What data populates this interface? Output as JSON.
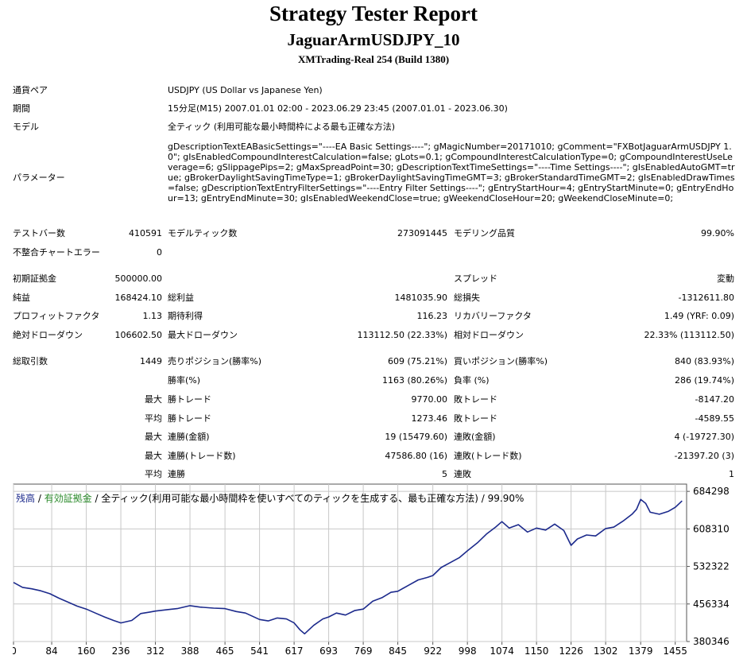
{
  "header": {
    "title": "Strategy Tester Report",
    "ea_name": "JaguarArmUSDJPY_10",
    "server": "XMTrading-Real 254 (Build 1380)"
  },
  "info": {
    "symbol_label": "通貨ペア",
    "symbol_value": "USDJPY (US Dollar vs Japanese Yen)",
    "period_label": "期間",
    "period_value": "15分足(M15) 2007.01.01 02:00 - 2023.06.29 23:45 (2007.01.01 - 2023.06.30)",
    "model_label": "モデル",
    "model_value": "全ティック (利用可能な最小時間枠による最も正確な方法)",
    "params_label": "パラメーター",
    "params_value": "gDescriptionTextEABasicSettings=\"----EA Basic Settings----\"; gMagicNumber=20171010; gComment=\"FXBotJaguarArmUSDJPY 1.0\"; gIsEnabledCompoundInterestCalculation=false; gLots=0.1; gCompoundInterestCalculationType=0; gCompoundInterestUseLeverage=6; gSlippagePips=2; gMaxSpreadPoint=30; gDescriptionTextTimeSettings=\"----Time Settings----\"; gIsEnabledAutoGMT=true; gBrokerDaylightSavingTimeType=1; gBrokerDaylightSavingTimeGMT=3; gBrokerStandardTimeGMT=2; gIsEnabledDrawTimes=false; gDescriptionTextEntryFilterSettings=\"----Entry Filter Settings----\"; gEntryStartHour=4; gEntryStartMinute=0; gEntryEndHour=13; gEntryEndMinute=30; gIsEnabledWeekendClose=true; gWeekendCloseHour=20; gWeekendCloseMinute=0;"
  },
  "stats": {
    "bars_label": "テストバー数",
    "bars_value": "410591",
    "ticks_label": "モデルティック数",
    "ticks_value": "273091445",
    "quality_label": "モデリング品質",
    "quality_value": "99.90%",
    "mismatch_label": "不整合チャートエラー",
    "mismatch_value": "0",
    "deposit_label": "初期証拠金",
    "deposit_value": "500000.00",
    "spread_label": "スプレッド",
    "spread_value": "変動",
    "net_label": "純益",
    "net_value": "168424.10",
    "gross_profit_label": "総利益",
    "gross_profit_value": "1481035.90",
    "gross_loss_label": "総損失",
    "gross_loss_value": "-1312611.80",
    "pf_label": "プロフィットファクタ",
    "pf_value": "1.13",
    "expected_label": "期待利得",
    "expected_value": "116.23",
    "recovery_label": "リカバリーファクタ",
    "recovery_value": "1.49 (YRF: 0.09)",
    "absdd_label": "絶対ドローダウン",
    "absdd_value": "106602.50",
    "maxdd_label": "最大ドローダウン",
    "maxdd_value": "113112.50 (22.33%)",
    "reldd_label": "相対ドローダウン",
    "reldd_value": "22.33% (113112.50)",
    "trades_label": "総取引数",
    "trades_value": "1449",
    "short_label": "売りポジション(勝率%)",
    "short_value": "609 (75.21%)",
    "long_label": "買いポジション(勝率%)",
    "long_value": "840 (83.93%)",
    "winrate_label": "勝率(%)",
    "winrate_value": "1163 (80.26%)",
    "lossrate_label": "負率 (%)",
    "lossrate_value": "286 (19.74%)",
    "max_label": "最大",
    "avg_label": "平均",
    "largest_win_label": "勝トレード",
    "largest_win_value": "9770.00",
    "largest_loss_label": "敗トレード",
    "largest_loss_value": "-8147.20",
    "avg_win_label": "勝トレード",
    "avg_win_value": "1273.46",
    "avg_loss_label": "敗トレード",
    "avg_loss_value": "-4589.55",
    "consec_win_label": "連勝(金額)",
    "consec_win_value": "19 (15479.60)",
    "consec_loss_label": "連敗(金額)",
    "consec_loss_value": "4 (-19727.30)",
    "consec_profit_label": "連勝(トレード数)",
    "consec_profit_value": "47586.80 (16)",
    "consec_lossamt_label": "連敗(トレード数)",
    "consec_lossamt_value": "-21397.20 (3)",
    "avg_consec_win_label": "連勝",
    "avg_consec_win_value": "5",
    "avg_consec_loss_label": "連敗",
    "avg_consec_loss_value": "1"
  },
  "legend": {
    "balance": "残高",
    "sep1": " / ",
    "equity": "有効証拠金",
    "rest": " / 全ティック(利用可能な最小時間枠を使いすべてのティックを生成する、最も正確な方法) / 99.90%"
  },
  "colors": {
    "balance_line": "#1c2a8c",
    "grid": "#c8c8c8"
  },
  "chart_data": {
    "type": "line",
    "xlabel": "",
    "ylabel": "",
    "xlim": [
      0,
      1480
    ],
    "ylim": [
      380346,
      699000
    ],
    "x_ticks": [
      0,
      84,
      160,
      236,
      312,
      388,
      465,
      541,
      617,
      693,
      769,
      845,
      922,
      998,
      1074,
      1150,
      1226,
      1302,
      1379,
      1455
    ],
    "y_ticks": [
      380346,
      456334,
      532322,
      608310,
      684298
    ],
    "grid": true,
    "series": [
      {
        "name": "残高",
        "x": [
          0,
          20,
          40,
          60,
          80,
          100,
          120,
          140,
          160,
          180,
          200,
          220,
          236,
          260,
          280,
          300,
          312,
          340,
          360,
          388,
          410,
          440,
          465,
          490,
          510,
          541,
          560,
          580,
          600,
          617,
          630,
          640,
          660,
          680,
          693,
          710,
          730,
          750,
          769,
          790,
          810,
          830,
          845,
          870,
          890,
          910,
          922,
          940,
          960,
          980,
          998,
          1020,
          1040,
          1060,
          1074,
          1090,
          1110,
          1130,
          1150,
          1170,
          1190,
          1210,
          1226,
          1240,
          1260,
          1280,
          1302,
          1320,
          1340,
          1360,
          1370,
          1379,
          1390,
          1400,
          1420,
          1440,
          1455,
          1470
        ],
        "values": [
          500000,
          490000,
          487000,
          483000,
          477000,
          468000,
          460000,
          452000,
          446000,
          438000,
          430000,
          423000,
          418000,
          423000,
          437000,
          440000,
          442000,
          445000,
          447000,
          453000,
          450000,
          448000,
          447000,
          441000,
          438000,
          425000,
          422000,
          428000,
          426000,
          418000,
          404000,
          396000,
          413000,
          426000,
          430000,
          438000,
          434000,
          443000,
          446000,
          462000,
          469000,
          480000,
          482000,
          495000,
          505000,
          510000,
          514000,
          530000,
          540000,
          550000,
          564000,
          580000,
          598000,
          612000,
          623000,
          610000,
          617000,
          602000,
          610000,
          606000,
          618000,
          605000,
          575000,
          588000,
          596000,
          594000,
          609000,
          612000,
          624000,
          638000,
          648000,
          668000,
          660000,
          642000,
          638000,
          644000,
          652000,
          665000
        ]
      }
    ]
  }
}
